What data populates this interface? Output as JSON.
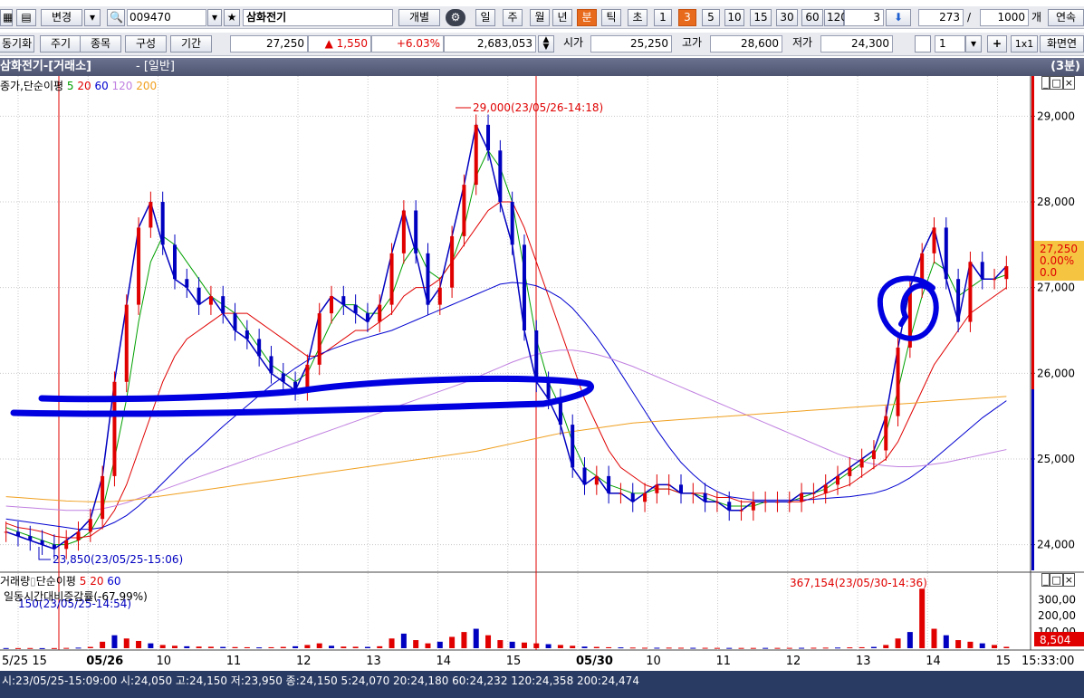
{
  "toolbar1": {
    "change_label": "변경",
    "code_value": "009470",
    "stock_name": "삼화전기",
    "detail_label": "개별",
    "period_buttons": [
      "일",
      "주",
      "월",
      "년",
      "분",
      "틱",
      "초",
      "1",
      "3",
      "5",
      "10",
      "15",
      "30",
      "60",
      "120"
    ],
    "active_period": "분",
    "active_interval": "3",
    "interval_value": "3",
    "count_value": "273",
    "separator": "/",
    "total_value": "1000",
    "total_unit": "개",
    "continuous_label": "연속"
  },
  "toolbar2": {
    "sync_label": "동기화",
    "tabs": [
      "주기",
      "종목",
      "구성",
      "기간"
    ],
    "price": "27,250",
    "change_arrow": "▲",
    "change": "1,550",
    "change_pct": "+6.03%",
    "volume": "2,683,053",
    "open_label": "시가",
    "open_value": "25,250",
    "high_label": "고가",
    "high_value": "28,600",
    "low_label": "저가",
    "low_value": "24,300",
    "screen_count": "1",
    "grid_label": "1x1",
    "screen_label": "화면연"
  },
  "title": {
    "name": "삼화전기-[거래소]",
    "mode": "- [일반]",
    "period": "(3분)"
  },
  "price_panel": {
    "legend_prefix": "종가,단순이평",
    "legend_ma": [
      {
        "label": "5",
        "color": "#00a000"
      },
      {
        "label": "20",
        "color": "#e00000"
      },
      {
        "label": "60",
        "color": "#0000d0"
      },
      {
        "label": "120",
        "color": "#c080e0"
      },
      {
        "label": "200",
        "color": "#f0a020"
      }
    ],
    "high_annotation": "29,000(23/05/26-14:18)",
    "low_annotation": "23,850(23/05/25-15:06)",
    "y_ticks": [
      "29,000",
      "28,000",
      "27,000",
      "26,000",
      "25,000",
      "24,000"
    ],
    "price_box": [
      "27,250",
      "0.00%",
      "0.0"
    ]
  },
  "volume_panel": {
    "legend_prefix": "거래량",
    "legend_suffix": "단순이평",
    "legend_ma": [
      {
        "label": "5",
        "color": "#e00000"
      },
      {
        "label": "20",
        "color": "#e00000"
      },
      {
        "label": "60",
        "color": "#0000d0"
      }
    ],
    "ratio_text": "일동시간대비증감률(-67.99%)",
    "min_annotation": "150(23/05/25-14:54)",
    "max_annotation": "367,154(23/05/30-14:36)",
    "y_ticks": [
      "300,00",
      "200,00",
      "100,00"
    ],
    "value_box": "8,504"
  },
  "x_axis": {
    "labels": [
      "5/25 15",
      "05/26",
      "10",
      "11",
      "12",
      "13",
      "14",
      "15",
      "05/30",
      "10",
      "11",
      "12",
      "13",
      "14",
      "15"
    ],
    "time": "15:33:00"
  },
  "statusbar": {
    "text": "시:23/05/25-15:09:00 시:24,050 고:24,150 저:23,950 종:24,150 5:24,070 20:24,180 60:24,232 120:24,358 200:24,474"
  },
  "panel_icons": [
    "minimize-icon",
    "maximize-icon",
    "close-icon"
  ],
  "chart_data": {
    "type": "line",
    "title": "삼화전기-[거래소]",
    "ylim": [
      23700,
      29300
    ],
    "x_labels": [
      "5/25 15",
      "05/26",
      "10",
      "11",
      "12",
      "13",
      "14",
      "15",
      "05/30",
      "10",
      "11",
      "12",
      "13",
      "14",
      "15"
    ],
    "series": [
      {
        "name": "종가",
        "color": "#0000c0",
        "values": [
          24150,
          24100,
          24050,
          24000,
          23950,
          24050,
          24150,
          24300,
          24800,
          25900,
          26800,
          27700,
          28000,
          27500,
          27100,
          27000,
          26800,
          26900,
          26700,
          26500,
          26400,
          26200,
          26000,
          25900,
          25800,
          26100,
          26700,
          26900,
          26800,
          26700,
          26600,
          26800,
          27400,
          27900,
          27400,
          26800,
          27000,
          27600,
          28200,
          28900,
          28600,
          28000,
          27500,
          26500,
          25900,
          25700,
          25400,
          24900,
          24700,
          24800,
          24600,
          24600,
          24500,
          24600,
          24700,
          24700,
          24600,
          24600,
          24500,
          24500,
          24400,
          24400,
          24500,
          24500,
          24500,
          24500,
          24600,
          24600,
          24700,
          24800,
          24900,
          25000,
          25100,
          25500,
          26300,
          27000,
          27400,
          27700,
          27100,
          26600,
          27300,
          27100,
          27100,
          27250
        ]
      },
      {
        "name": "5",
        "color": "#00a000",
        "values": [
          24200,
          24150,
          24100,
          24050,
          24000,
          24000,
          24050,
          24150,
          24400,
          25000,
          25700,
          26600,
          27300,
          27600,
          27500,
          27300,
          27100,
          26900,
          26800,
          26700,
          26500,
          26300,
          26100,
          26000,
          25900,
          26000,
          26300,
          26600,
          26800,
          26800,
          26700,
          26700,
          26900,
          27300,
          27500,
          27200,
          27100,
          27300,
          27700,
          28300,
          28600,
          28400,
          28000,
          27200,
          26400,
          25900,
          25600,
          25200,
          24900,
          24800,
          24700,
          24650,
          24600,
          24600,
          24650,
          24650,
          24600,
          24600,
          24550,
          24500,
          24450,
          24450,
          24450,
          24500,
          24500,
          24500,
          24550,
          24600,
          24650,
          24750,
          24850,
          24950,
          25050,
          25300,
          25800,
          26400,
          26900,
          27300,
          27200,
          26900,
          27000,
          27100,
          27100,
          27150
        ]
      },
      {
        "name": "20",
        "color": "#e00000",
        "values": [
          24250,
          24200,
          24180,
          24150,
          24100,
          24080,
          24080,
          24100,
          24200,
          24400,
          24700,
          25100,
          25500,
          25900,
          26200,
          26400,
          26500,
          26600,
          26700,
          26700,
          26700,
          26600,
          26500,
          26400,
          26300,
          26200,
          26200,
          26300,
          26400,
          26500,
          26500,
          26600,
          26700,
          26900,
          27000,
          27000,
          27100,
          27300,
          27500,
          27700,
          27900,
          28000,
          28000,
          27700,
          27300,
          26900,
          26500,
          26100,
          25700,
          25400,
          25100,
          24900,
          24800,
          24700,
          24650,
          24650,
          24600,
          24600,
          24600,
          24550,
          24550,
          24500,
          24500,
          24500,
          24500,
          24500,
          24500,
          24550,
          24600,
          24650,
          24700,
          24800,
          24900,
          25000,
          25200,
          25500,
          25800,
          26100,
          26300,
          26500,
          26700,
          26800,
          26900,
          27000
        ]
      },
      {
        "name": "60",
        "color": "#0000d0",
        "values": [
          24300,
          24280,
          24260,
          24240,
          24220,
          24200,
          24180,
          24180,
          24200,
          24260,
          24340,
          24450,
          24580,
          24720,
          24860,
          25000,
          25120,
          25250,
          25380,
          25500,
          25620,
          25740,
          25860,
          25960,
          26060,
          26150,
          26220,
          26280,
          26330,
          26380,
          26420,
          26460,
          26500,
          26560,
          26620,
          26680,
          26740,
          26800,
          26860,
          26920,
          26980,
          27040,
          27060,
          27050,
          27020,
          26960,
          26880,
          26760,
          26600,
          26420,
          26220,
          26000,
          25780,
          25560,
          25340,
          25140,
          24960,
          24820,
          24700,
          24620,
          24560,
          24540,
          24520,
          24520,
          24520,
          24520,
          24520,
          24530,
          24540,
          24550,
          24560,
          24580,
          24600,
          24640,
          24700,
          24780,
          24880,
          25000,
          25120,
          25240,
          25360,
          25480,
          25580,
          25680
        ]
      },
      {
        "name": "120",
        "color": "#c080e0",
        "values": [
          24450,
          24440,
          24430,
          24420,
          24410,
          24400,
          24400,
          24400,
          24420,
          24450,
          24490,
          24540,
          24590,
          24640,
          24690,
          24740,
          24790,
          24840,
          24890,
          24940,
          24990,
          25040,
          25090,
          25140,
          25190,
          25240,
          25290,
          25340,
          25390,
          25440,
          25490,
          25540,
          25590,
          25640,
          25690,
          25740,
          25790,
          25840,
          25890,
          25950,
          26010,
          26070,
          26130,
          26180,
          26220,
          26250,
          26270,
          26270,
          26250,
          26220,
          26180,
          26130,
          26080,
          26020,
          25960,
          25900,
          25840,
          25780,
          25720,
          25660,
          25600,
          25540,
          25480,
          25420,
          25360,
          25300,
          25240,
          25180,
          25120,
          25060,
          25010,
          24970,
          24940,
          24920,
          24910,
          24910,
          24920,
          24940,
          24960,
          24990,
          25020,
          25050,
          25080,
          25110
        ]
      },
      {
        "name": "200",
        "color": "#f0a020",
        "values": [
          24560,
          24550,
          24540,
          24530,
          24520,
          24510,
          24505,
          24500,
          24500,
          24505,
          24515,
          24530,
          24550,
          24570,
          24590,
          24610,
          24630,
          24650,
          24670,
          24690,
          24710,
          24730,
          24750,
          24770,
          24790,
          24810,
          24830,
          24850,
          24870,
          24890,
          24910,
          24930,
          24950,
          24970,
          24990,
          25010,
          25030,
          25050,
          25070,
          25090,
          25120,
          25150,
          25180,
          25210,
          25240,
          25270,
          25300,
          25320,
          25340,
          25360,
          25380,
          25400,
          25420,
          25430,
          25440,
          25450,
          25460,
          25470,
          25480,
          25490,
          25500,
          25510,
          25520,
          25530,
          25540,
          25550,
          25560,
          25570,
          25580,
          25590,
          25600,
          25610,
          25620,
          25630,
          25640,
          25650,
          25660,
          25670,
          25680,
          25690,
          25700,
          25710,
          25720,
          25730
        ]
      }
    ],
    "volume": [
      1000,
      800,
      1200,
      600,
      900,
      2000,
      3500,
      8000,
      40000,
      80000,
      60000,
      45000,
      30000,
      20000,
      15000,
      12000,
      10000,
      9000,
      8000,
      7000,
      6000,
      5000,
      6000,
      8000,
      12000,
      20000,
      30000,
      15000,
      10000,
      9000,
      8000,
      12000,
      60000,
      90000,
      50000,
      30000,
      40000,
      70000,
      100000,
      120000,
      80000,
      50000,
      40000,
      35000,
      30000,
      25000,
      20000,
      15000,
      10000,
      8000,
      6000,
      5000,
      4000,
      3000,
      3000,
      3500,
      3000,
      2500,
      2500,
      2000,
      2000,
      1800,
      1800,
      2000,
      2000,
      2200,
      2500,
      3000,
      3500,
      4000,
      5000,
      6000,
      8000,
      20000,
      60000,
      100000,
      367154,
      120000,
      80000,
      50000,
      40000,
      30000,
      20000,
      8504
    ],
    "volume_ylim": [
      0,
      380000
    ]
  }
}
